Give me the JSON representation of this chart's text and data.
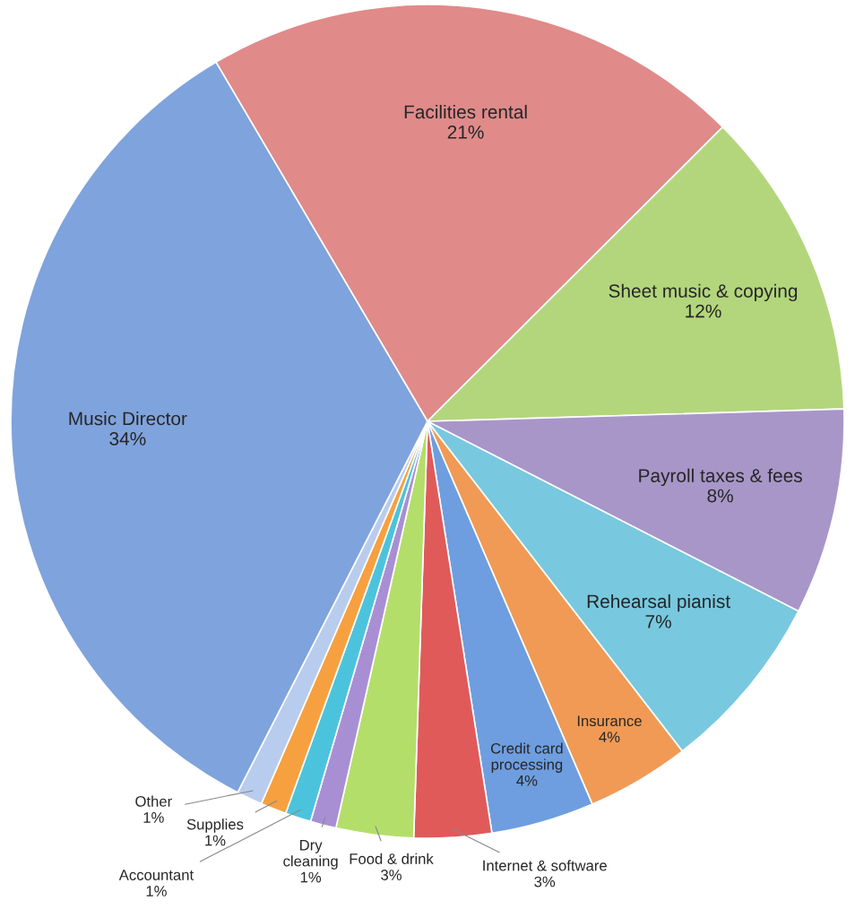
{
  "chart_data": {
    "type": "pie",
    "categories": [
      "Facilities rental",
      "Sheet music & copying",
      "Payroll taxes & fees",
      "Rehearsal pianist",
      "Insurance",
      "Credit card\nprocessing",
      "Internet & software",
      "Food & drink",
      "Dry\ncleaning",
      "Accountant",
      "Supplies",
      "Other",
      "Music Director"
    ],
    "values": [
      21,
      12,
      8,
      7,
      4,
      4,
      3,
      3,
      1,
      1,
      1,
      1,
      34
    ],
    "colors": [
      "#e08a8a",
      "#b3d67c",
      "#a896c9",
      "#78c8df",
      "#f09a55",
      "#6e9ee0",
      "#e05a5a",
      "#b4de6a",
      "#a88fd4",
      "#4cc3dd",
      "#f7a040",
      "#b8ccee",
      "#7fa3dc"
    ],
    "value_labels": [
      "21%",
      "12%",
      "8%",
      "7%",
      "4%",
      "4%",
      "3%",
      "3%",
      "1%",
      "1%",
      "1%",
      "1%",
      "34%"
    ]
  }
}
